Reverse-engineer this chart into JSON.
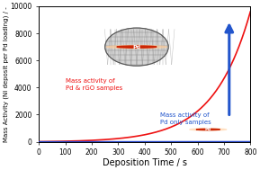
{
  "title": "",
  "xlabel": "Deposition Time / s",
  "ylabel": "Mass Activity (Ni deposit per Pd loading) / -",
  "xlim": [
    0,
    800
  ],
  "ylim": [
    0,
    10000
  ],
  "xticks": [
    0,
    100,
    200,
    300,
    400,
    500,
    600,
    700,
    800
  ],
  "yticks": [
    0,
    2000,
    4000,
    6000,
    8000,
    10000
  ],
  "background_color": "#ffffff",
  "plot_bg_color": "#ffffff",
  "curve_red_color": "#ee1111",
  "curve_blue_color": "#2244cc",
  "arrow_color": "#2255cc",
  "label_red": "Mass activity of\nPd & rGO samples",
  "label_blue": "Mass activity of\nPd only samples",
  "xlabel_fontsize": 7,
  "ylabel_fontsize": 5.0,
  "tick_fontsize": 5.5,
  "red_k": 0.0072,
  "red_max": 9600,
  "blue_slope": 0.012
}
